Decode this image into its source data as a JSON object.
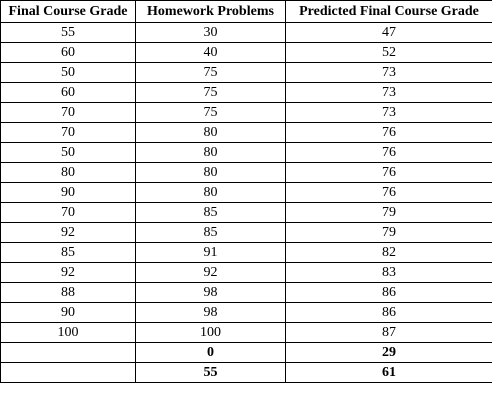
{
  "table": {
    "headers": [
      "Final Course Grade",
      "Homework Problems",
      "Predicted Final Course Grade"
    ],
    "rows": [
      [
        "55",
        "30",
        "47"
      ],
      [
        "60",
        "40",
        "52"
      ],
      [
        "50",
        "75",
        "73"
      ],
      [
        "60",
        "75",
        "73"
      ],
      [
        "70",
        "75",
        "73"
      ],
      [
        "70",
        "80",
        "76"
      ],
      [
        "50",
        "80",
        "76"
      ],
      [
        "80",
        "80",
        "76"
      ],
      [
        "90",
        "80",
        "76"
      ],
      [
        "70",
        "85",
        "79"
      ],
      [
        "92",
        "85",
        "79"
      ],
      [
        "85",
        "91",
        "82"
      ],
      [
        "92",
        "92",
        "83"
      ],
      [
        "88",
        "98",
        "86"
      ],
      [
        "90",
        "98",
        "86"
      ],
      [
        "100",
        "100",
        "87"
      ]
    ],
    "summary_rows": [
      [
        "",
        "0",
        "29"
      ],
      [
        "",
        "55",
        "61"
      ]
    ]
  }
}
